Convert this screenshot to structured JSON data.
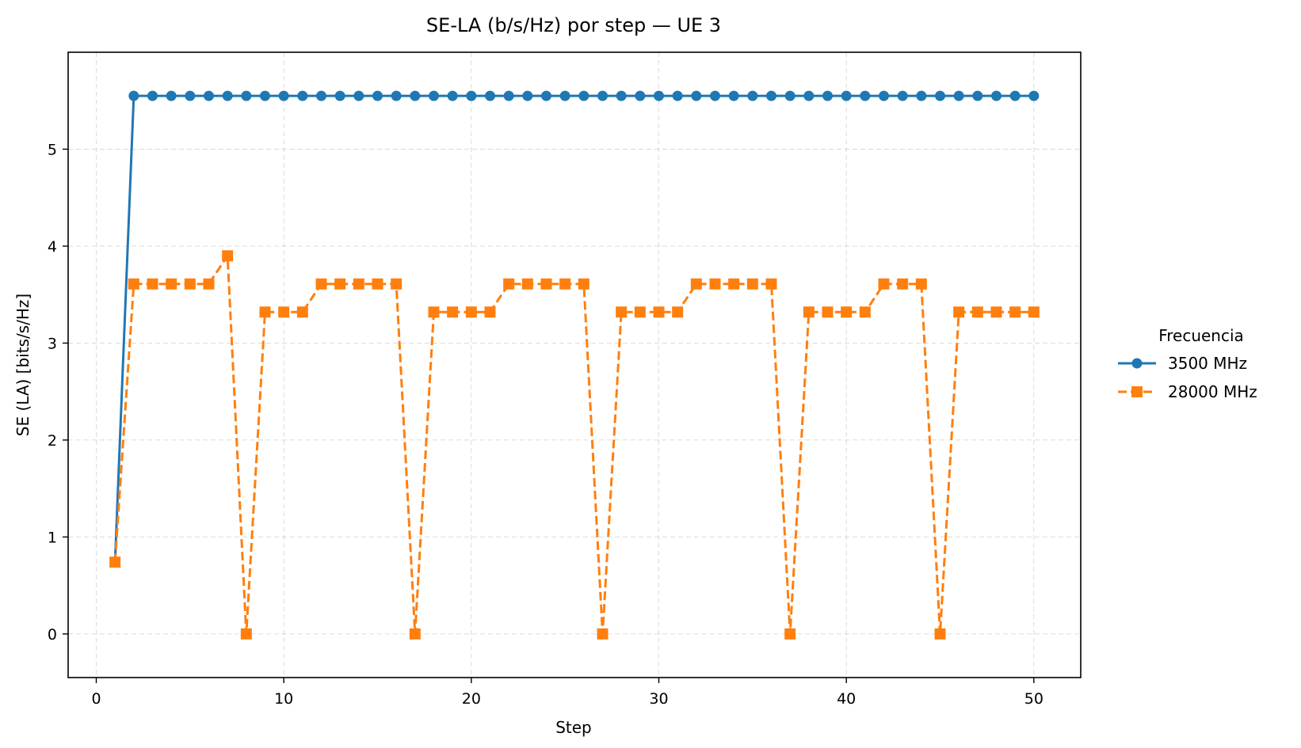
{
  "chart_data": {
    "type": "line",
    "title": "SE-LA (b/s/Hz) por step — UE 3",
    "xlabel": "Step",
    "ylabel": "SE (LA) [bits/s/Hz]",
    "xlim": [
      -1.5,
      52.5
    ],
    "ylim": [
      -0.45,
      6.0
    ],
    "xticks": [
      0,
      10,
      20,
      30,
      40,
      50
    ],
    "yticks": [
      0,
      1,
      2,
      3,
      4,
      5
    ],
    "grid": true,
    "legend": {
      "title": "Frecuencia",
      "placement": "outside-right"
    },
    "x": [
      1,
      2,
      3,
      4,
      5,
      6,
      7,
      8,
      9,
      10,
      11,
      12,
      13,
      14,
      15,
      16,
      17,
      18,
      19,
      20,
      21,
      22,
      23,
      24,
      25,
      26,
      27,
      28,
      29,
      30,
      31,
      32,
      33,
      34,
      35,
      36,
      37,
      38,
      39,
      40,
      41,
      42,
      43,
      44,
      45,
      46,
      47,
      48,
      49,
      50
    ],
    "series": [
      {
        "name": "3500 MHz",
        "color": "#1f77b4",
        "marker": "circle",
        "linestyle": "solid",
        "values": [
          0.74,
          5.55,
          5.55,
          5.55,
          5.55,
          5.55,
          5.55,
          5.55,
          5.55,
          5.55,
          5.55,
          5.55,
          5.55,
          5.55,
          5.55,
          5.55,
          5.55,
          5.55,
          5.55,
          5.55,
          5.55,
          5.55,
          5.55,
          5.55,
          5.55,
          5.55,
          5.55,
          5.55,
          5.55,
          5.55,
          5.55,
          5.55,
          5.55,
          5.55,
          5.55,
          5.55,
          5.55,
          5.55,
          5.55,
          5.55,
          5.55,
          5.55,
          5.55,
          5.55,
          5.55,
          5.55,
          5.55,
          5.55,
          5.55,
          5.55
        ]
      },
      {
        "name": "28000 MHz",
        "color": "#ff7f0e",
        "marker": "square",
        "linestyle": "dashed",
        "values": [
          0.74,
          3.61,
          3.61,
          3.61,
          3.61,
          3.61,
          3.9,
          0.0,
          3.32,
          3.32,
          3.32,
          3.61,
          3.61,
          3.61,
          3.61,
          3.61,
          0.0,
          3.32,
          3.32,
          3.32,
          3.32,
          3.61,
          3.61,
          3.61,
          3.61,
          3.61,
          0.0,
          3.32,
          3.32,
          3.32,
          3.32,
          3.61,
          3.61,
          3.61,
          3.61,
          3.61,
          0.0,
          3.32,
          3.32,
          3.32,
          3.32,
          3.61,
          3.61,
          3.61,
          0.0,
          3.32,
          3.32,
          3.32,
          3.32,
          3.32
        ]
      }
    ]
  }
}
